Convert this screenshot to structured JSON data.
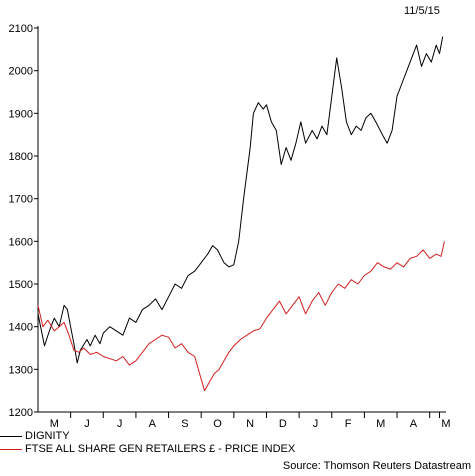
{
  "date_label": "11/5/15",
  "source": "Source: Thomson Reuters Datastream",
  "chart_data": {
    "type": "line",
    "xlabel": "",
    "ylabel": "",
    "ylim": [
      1200,
      2100
    ],
    "yticks": [
      1200,
      1300,
      1400,
      1500,
      1600,
      1700,
      1800,
      1900,
      2000,
      2100
    ],
    "xticks": [
      "M",
      "J",
      "J",
      "A",
      "S",
      "O",
      "N",
      "D",
      "J",
      "F",
      "M",
      "A",
      "M"
    ],
    "xlim": [
      0,
      12.5
    ],
    "grid": false,
    "legend_placement": "bottom-left",
    "series": [
      {
        "name": "DIGNITY",
        "color": "#000000",
        "x": [
          0.0,
          0.2,
          0.35,
          0.5,
          0.65,
          0.8,
          0.9,
          1.0,
          1.1,
          1.2,
          1.3,
          1.5,
          1.6,
          1.75,
          1.9,
          2.0,
          2.2,
          2.4,
          2.6,
          2.8,
          3.0,
          3.2,
          3.4,
          3.6,
          3.8,
          4.0,
          4.2,
          4.4,
          4.6,
          4.8,
          5.0,
          5.2,
          5.35,
          5.5,
          5.7,
          5.85,
          6.0,
          6.15,
          6.3,
          6.5,
          6.6,
          6.75,
          6.9,
          7.0,
          7.15,
          7.3,
          7.45,
          7.6,
          7.75,
          7.9,
          8.05,
          8.2,
          8.4,
          8.55,
          8.7,
          8.85,
          9.0,
          9.15,
          9.3,
          9.45,
          9.6,
          9.75,
          9.9,
          10.05,
          10.2,
          10.35,
          10.55,
          10.7,
          10.85,
          11.0,
          11.15,
          11.3,
          11.45,
          11.6,
          11.75,
          11.9,
          12.05,
          12.2,
          12.3,
          12.4
        ],
        "values": [
          1430,
          1355,
          1390,
          1420,
          1400,
          1450,
          1440,
          1400,
          1360,
          1315,
          1345,
          1370,
          1355,
          1380,
          1360,
          1385,
          1400,
          1390,
          1380,
          1420,
          1410,
          1440,
          1450,
          1465,
          1440,
          1470,
          1500,
          1490,
          1520,
          1530,
          1550,
          1570,
          1590,
          1580,
          1550,
          1540,
          1545,
          1600,
          1700,
          1820,
          1900,
          1925,
          1910,
          1920,
          1880,
          1860,
          1780,
          1820,
          1790,
          1830,
          1880,
          1830,
          1860,
          1840,
          1870,
          1850,
          1940,
          2030,
          1960,
          1880,
          1850,
          1870,
          1860,
          1890,
          1900,
          1880,
          1850,
          1830,
          1860,
          1940,
          1970,
          2000,
          2030,
          2060,
          2010,
          2040,
          2020,
          2060,
          2040,
          2080
        ]
      },
      {
        "name": "FTSE ALL SHARE GEN RETAILERS £ - PRICE INDEX",
        "color": "#d21f1f",
        "x": [
          0.0,
          0.15,
          0.3,
          0.5,
          0.65,
          0.8,
          0.95,
          1.1,
          1.25,
          1.4,
          1.6,
          1.8,
          2.0,
          2.2,
          2.4,
          2.6,
          2.8,
          3.0,
          3.2,
          3.4,
          3.6,
          3.8,
          4.0,
          4.2,
          4.4,
          4.6,
          4.8,
          4.95,
          5.1,
          5.25,
          5.4,
          5.55,
          5.7,
          5.85,
          6.0,
          6.2,
          6.4,
          6.6,
          6.8,
          7.0,
          7.2,
          7.4,
          7.6,
          7.8,
          8.0,
          8.2,
          8.4,
          8.6,
          8.8,
          9.0,
          9.2,
          9.4,
          9.6,
          9.8,
          10.0,
          10.2,
          10.4,
          10.6,
          10.8,
          11.0,
          11.2,
          11.4,
          11.6,
          11.8,
          12.0,
          12.2,
          12.35,
          12.45
        ],
        "values": [
          1450,
          1400,
          1415,
          1390,
          1400,
          1410,
          1380,
          1345,
          1340,
          1350,
          1335,
          1340,
          1330,
          1325,
          1320,
          1330,
          1310,
          1320,
          1340,
          1360,
          1370,
          1380,
          1375,
          1350,
          1360,
          1340,
          1330,
          1290,
          1250,
          1270,
          1290,
          1300,
          1320,
          1340,
          1355,
          1370,
          1380,
          1390,
          1395,
          1420,
          1440,
          1460,
          1430,
          1450,
          1470,
          1430,
          1460,
          1480,
          1450,
          1480,
          1500,
          1490,
          1510,
          1500,
          1520,
          1530,
          1550,
          1540,
          1535,
          1550,
          1540,
          1560,
          1565,
          1580,
          1560,
          1570,
          1565,
          1600
        ]
      }
    ]
  }
}
